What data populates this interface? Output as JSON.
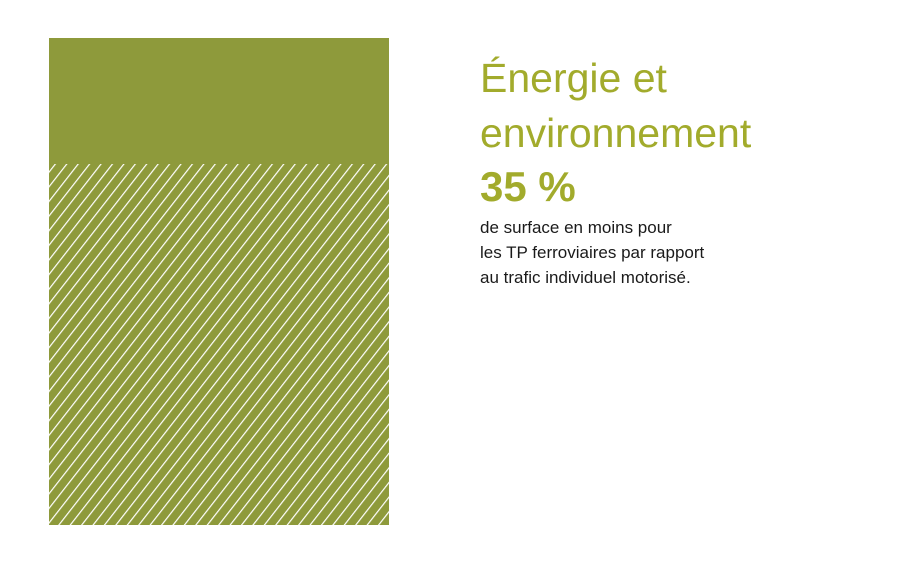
{
  "heading": [
    "Énergie et",
    "environnement"
  ],
  "stat": "35 %",
  "description": [
    "de surface en moins pour",
    "les TP ferroviaires par rapport",
    "au trafic individuel motorisé."
  ]
}
